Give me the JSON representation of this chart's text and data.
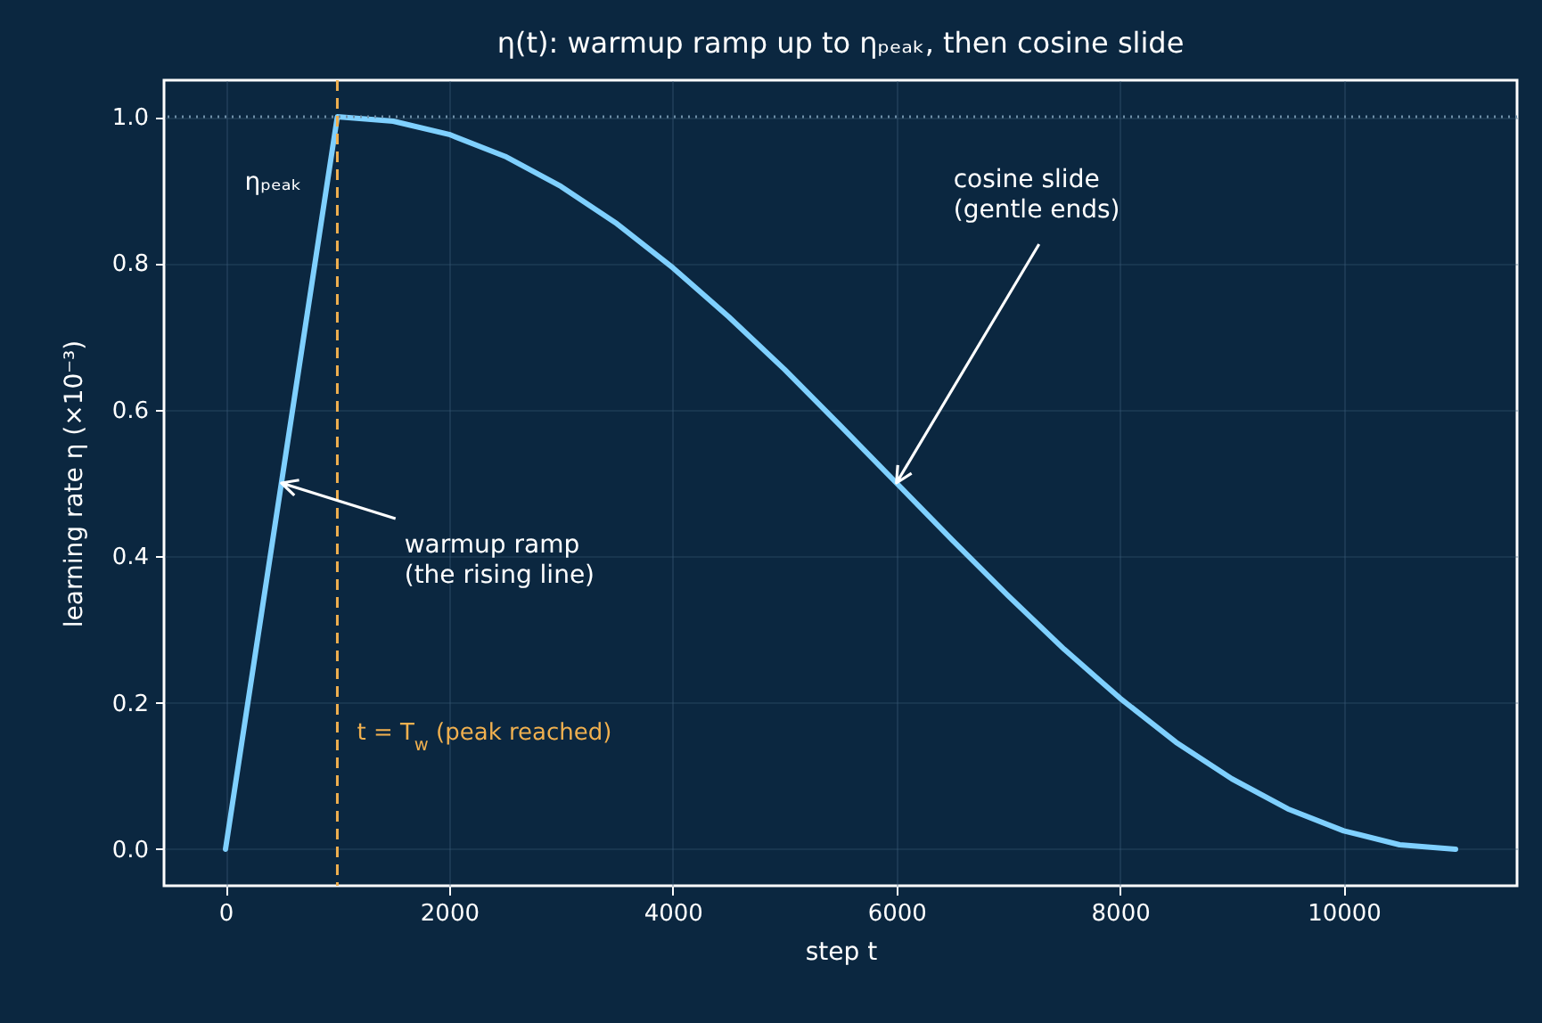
{
  "chart_data": {
    "type": "line",
    "title": "η(t): warmup ramp up to ηₚₑₐₖ, then cosine slide",
    "xlabel": "step t",
    "ylabel": "learning rate η  (×10⁻³)",
    "x": [
      0,
      1000,
      1500,
      2000,
      2500,
      3000,
      3500,
      4000,
      4500,
      5000,
      5500,
      6000,
      6500,
      7000,
      7500,
      8000,
      8500,
      9000,
      9500,
      10000,
      10500,
      11000
    ],
    "series": [
      {
        "color": "#7fd0ff",
        "values": [
          0,
          1.0,
          0.994,
          0.976,
          0.946,
          0.905,
          0.854,
          0.794,
          0.727,
          0.655,
          0.578,
          0.5,
          0.422,
          0.346,
          0.273,
          0.206,
          0.146,
          0.096,
          0.055,
          0.025,
          0.006,
          0
        ]
      }
    ],
    "xlim": [
      -550,
      11550
    ],
    "xticks": [
      0,
      2000,
      4000,
      6000,
      8000,
      10000
    ],
    "ylim": [
      -0.05,
      1.05
    ],
    "yticks": [
      {
        "value": 0,
        "label": "0.0"
      },
      {
        "value": 0.2,
        "label": "0.2"
      },
      {
        "value": 0.4,
        "label": "0.4"
      },
      {
        "value": 0.6,
        "label": "0.6"
      },
      {
        "value": 0.8,
        "label": "0.8"
      },
      {
        "value": 1,
        "label": "1.0"
      }
    ],
    "grid": true,
    "line_style": "solid",
    "marker": "none",
    "ref_lines": [
      {
        "axis": "y",
        "value": 1,
        "color": "#6f8fa8",
        "line_style": "dotted"
      },
      {
        "axis": "x",
        "value": 1000,
        "color": "#f0b04f",
        "line_style": "dashed",
        "label": "t = T$_{w}$ (peak reached)"
      }
    ],
    "annotations": [
      {
        "text": "ηₚₑₐₖ",
        "x": 1000,
        "y": 1.0
      },
      {
        "text": "warmup ramp\n(the rising line)",
        "x": 500,
        "y": 0.5
      },
      {
        "text": "cosine slide\n(gentle ends)",
        "x": 6000,
        "y": 0.5
      }
    ]
  }
}
